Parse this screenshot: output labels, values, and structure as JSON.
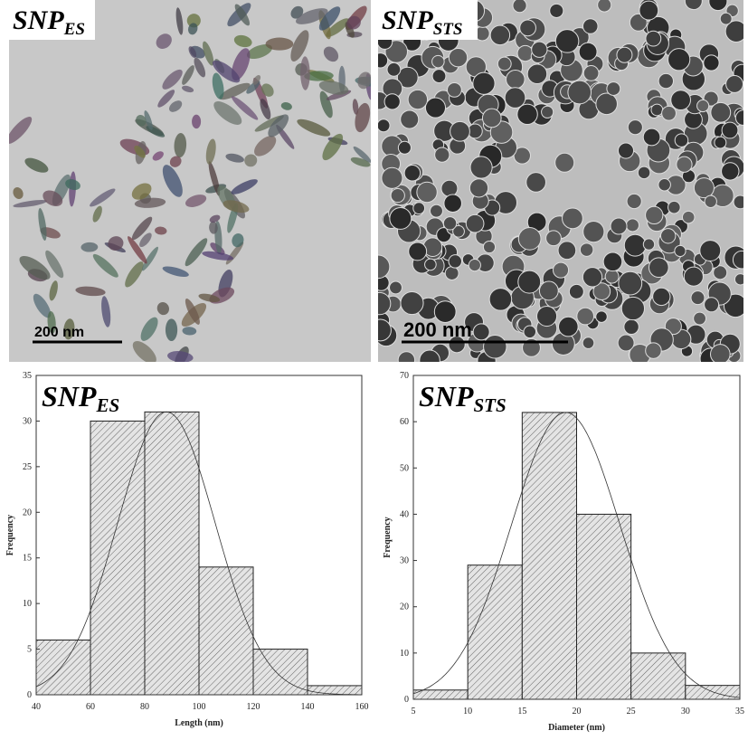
{
  "images": [
    {
      "label": "SNP",
      "label_sub": "ES",
      "scale_bar": "200 nm"
    },
    {
      "label": "SNP",
      "label_sub": "STS",
      "scale_bar": "200 nm"
    }
  ],
  "chart_data": [
    {
      "type": "histogram",
      "title": "SNP",
      "title_sub": "ES",
      "x_label": "Length (nm)",
      "y_label": "Frequency",
      "bins": [
        40,
        60,
        80,
        100,
        120,
        140,
        160
      ],
      "values": [
        6,
        30,
        31,
        14,
        5,
        1
      ],
      "xlim": [
        40,
        160
      ],
      "xticks": [
        40,
        60,
        80,
        100,
        120,
        140,
        160
      ],
      "ylim": [
        0,
        35
      ],
      "yticks": [
        0,
        5,
        10,
        15,
        20,
        25,
        30,
        35
      ],
      "fit": {
        "mean": 88,
        "sd": 18,
        "amplitude": 31
      }
    },
    {
      "type": "histogram",
      "title": "SNP",
      "title_sub": "STS",
      "x_label": "Diameter (nm)",
      "y_label": "Frequency",
      "bins": [
        5,
        10,
        15,
        20,
        25,
        30,
        35
      ],
      "values": [
        2,
        29,
        62,
        40,
        10,
        3
      ],
      "xlim": [
        5,
        35
      ],
      "xticks": [
        5,
        10,
        15,
        20,
        25,
        30,
        35
      ],
      "ylim": [
        0,
        70
      ],
      "yticks": [
        0,
        10,
        20,
        30,
        40,
        50,
        60,
        70
      ],
      "fit": {
        "mean": 19,
        "sd": 5,
        "amplitude": 62
      }
    }
  ]
}
